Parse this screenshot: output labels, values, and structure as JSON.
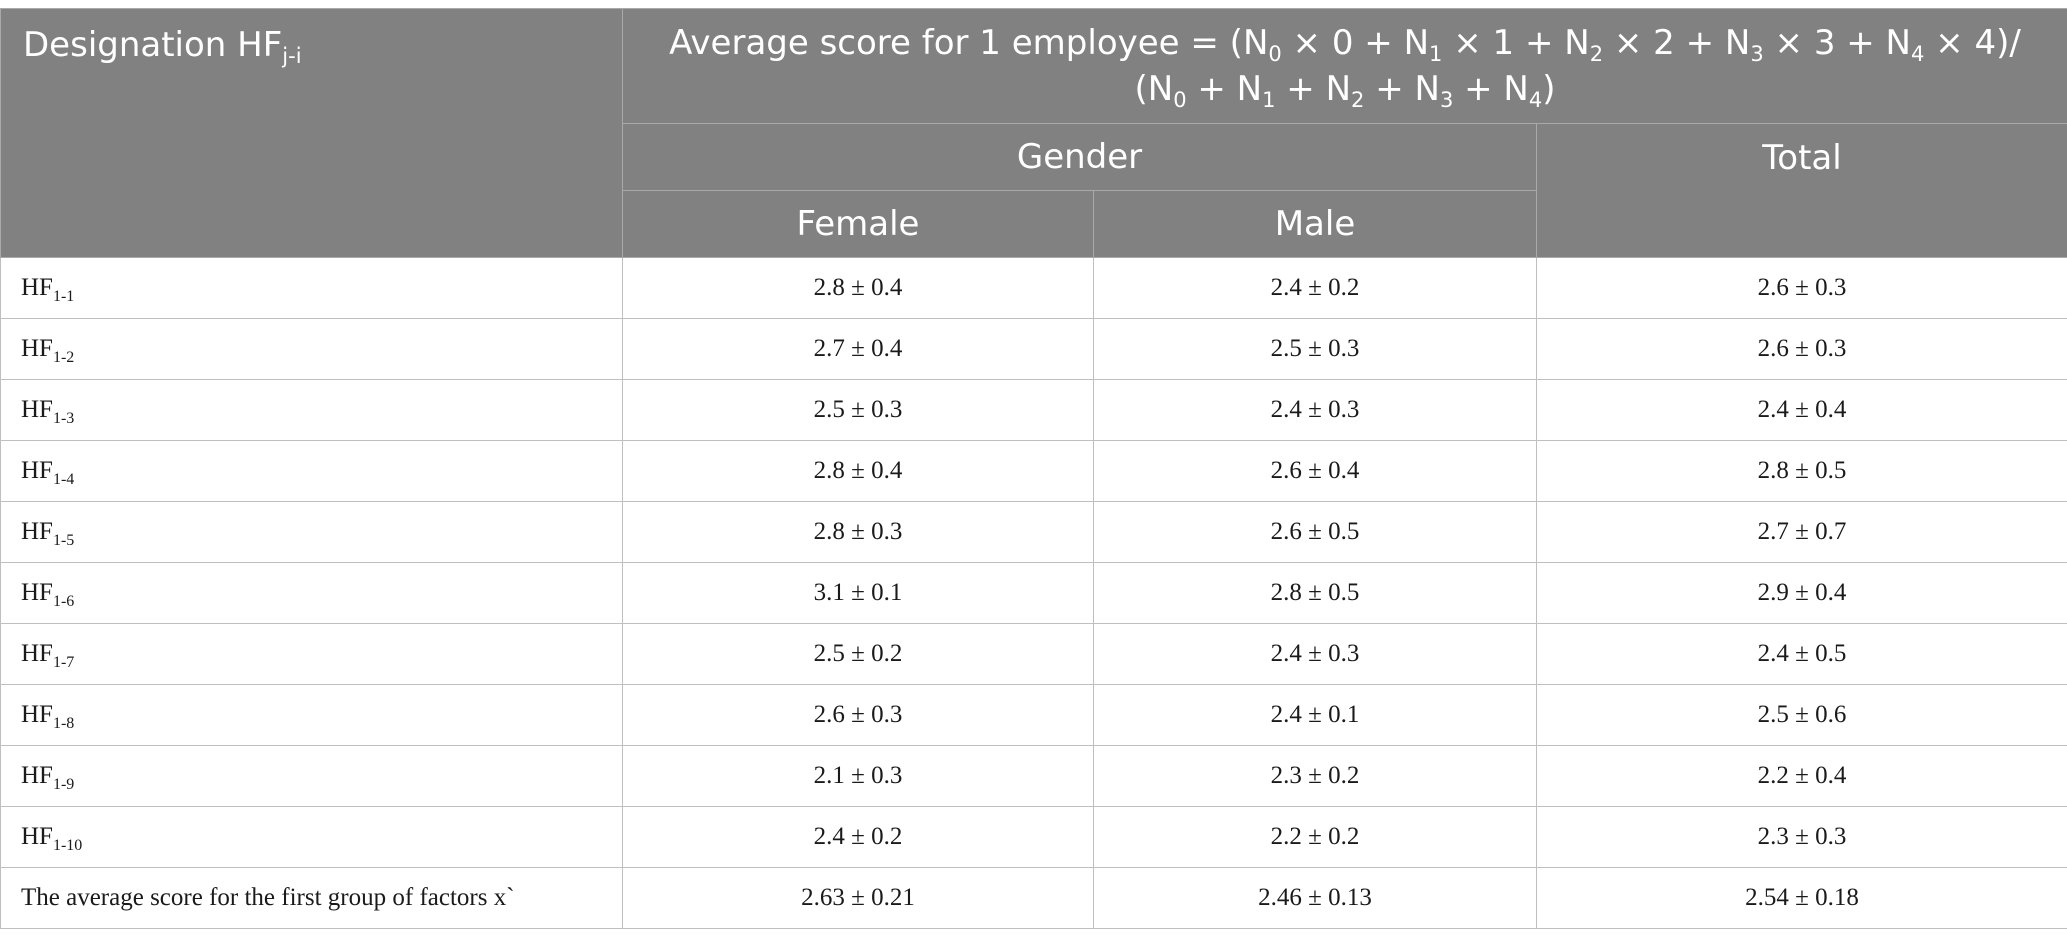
{
  "header": {
    "designation_prefix": "Designation HF",
    "designation_sub": "j-i",
    "formula": {
      "line1_prefix": "Average score for 1 employee  =  (N",
      "terms": [
        {
          "sub": "0",
          "after": " ×  0  +  N"
        },
        {
          "sub": "1",
          "after": " × 1  +  N"
        },
        {
          "sub": "2",
          "after": " ×  2  +  N"
        },
        {
          "sub": "3",
          "after": " ×  3  +  N"
        },
        {
          "sub": "4",
          "after": " ×  4)/"
        }
      ],
      "line2_prefix": "(N",
      "line2_terms": [
        {
          "sub": "0",
          "after": " +  N"
        },
        {
          "sub": "1",
          "after": " +  N"
        },
        {
          "sub": "2",
          "after": " +  N"
        },
        {
          "sub": "3",
          "after": " +  N"
        },
        {
          "sub": "4",
          "after": ")"
        }
      ]
    },
    "gender_label": "Gender",
    "total_label": "Total",
    "female_label": "Female",
    "male_label": "Male"
  },
  "rows": [
    {
      "prefix": "HF",
      "sub": "1-1",
      "female": "2.8 ± 0.4",
      "male": "2.4 ± 0.2",
      "total": "2.6 ± 0.3"
    },
    {
      "prefix": "HF",
      "sub": "1-2",
      "female": "2.7 ± 0.4",
      "male": "2.5 ± 0.3",
      "total": "2.6 ± 0.3"
    },
    {
      "prefix": "HF",
      "sub": "1-3",
      "female": "2.5 ± 0.3",
      "male": "2.4 ± 0.3",
      "total": "2.4 ± 0.4"
    },
    {
      "prefix": "HF",
      "sub": "1-4",
      "female": "2.8 ± 0.4",
      "male": "2.6 ± 0.4",
      "total": "2.8 ± 0.5"
    },
    {
      "prefix": "HF",
      "sub": "1-5",
      "female": "2.8 ± 0.3",
      "male": "2.6 ± 0.5",
      "total": "2.7 ± 0.7"
    },
    {
      "prefix": "HF",
      "sub": "1-6",
      "female": "3.1 ± 0.1",
      "male": "2.8 ± 0.5",
      "total": "2.9 ± 0.4"
    },
    {
      "prefix": "HF",
      "sub": "1-7",
      "female": "2.5 ± 0.2",
      "male": "2.4 ± 0.3",
      "total": "2.4 ± 0.5"
    },
    {
      "prefix": "HF",
      "sub": "1-8",
      "female": "2.6 ± 0.3",
      "male": "2.4 ± 0.1",
      "total": "2.5 ± 0.6"
    },
    {
      "prefix": "HF",
      "sub": "1-9",
      "female": "2.1 ± 0.3",
      "male": "2.3 ± 0.2",
      "total": "2.2 ± 0.4"
    },
    {
      "prefix": "HF",
      "sub": "1-10",
      "female": "2.4 ± 0.2",
      "male": "2.2 ± 0.2",
      "total": "2.3 ± 0.3"
    }
  ],
  "summary": {
    "label": "The average score for the first group of factors x`",
    "female": "2.63 ± 0.21",
    "male": "2.46 ± 0.13",
    "total": "2.54 ± 0.18"
  },
  "colors": {
    "header_bg": "#808180",
    "header_text": "#ffffff",
    "grid": "#bfbfbf"
  }
}
